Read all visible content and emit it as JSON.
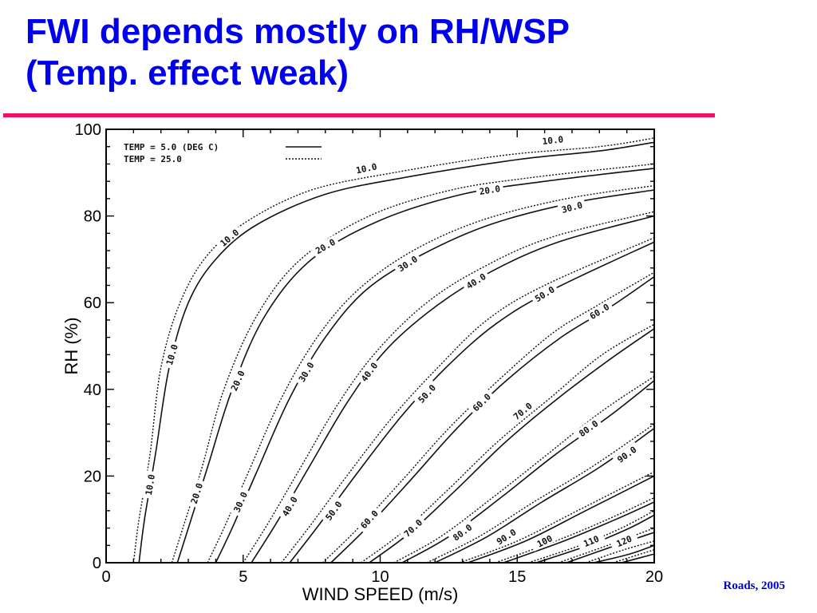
{
  "slide": {
    "title_line1": "FWI depends mostly on RH/WSP",
    "title_line2": "(Temp. effect weak)",
    "credit": "Roads, 2005",
    "title_color": "#0000ee",
    "rule_color": "#ee1166"
  },
  "chart_data": {
    "type": "line",
    "xlabel": "WIND SPEED   (m/s)",
    "ylabel": "RH (%)",
    "xlim": [
      0,
      20
    ],
    "ylim": [
      0,
      100
    ],
    "xticks": [
      "0",
      "5",
      "10",
      "15",
      "20"
    ],
    "yticks": [
      "0",
      "20",
      "40",
      "60",
      "80",
      "100"
    ],
    "legend": {
      "placement": "top-left",
      "entries": [
        {
          "label": "TEMP =    5.0 (DEG C)",
          "style": "solid"
        },
        {
          "label": "TEMP =   25.0",
          "style": "dotted"
        }
      ]
    },
    "series": [
      {
        "name": "TEMP =    5.0 (DEG C)",
        "style": "solid",
        "contours": [
          {
            "level": "10.0",
            "x": [
              1.2,
              1.4,
              1.8,
              2.3,
              3.0,
              4.0,
              5.5,
              8.0,
              11.0,
              15.0,
              18.0,
              20.0
            ],
            "y": [
              0,
              10,
              25,
              45,
              60,
              70,
              78,
              85,
              89,
              93,
              95,
              97
            ],
            "label_at": [
              [
                1.6,
                18
              ],
              [
                2.4,
                48
              ],
              [
                4.5,
                75
              ],
              [
                9.5,
                91
              ],
              [
                16.3,
                97.5
              ]
            ]
          },
          {
            "level": "20.0",
            "x": [
              2.6,
              3.0,
              3.7,
              4.6,
              5.8,
              7.5,
              10.0,
              13.0,
              16.0,
              20.0
            ],
            "y": [
              0,
              8,
              22,
              40,
              57,
              70,
              79,
              85,
              88,
              91
            ],
            "label_at": [
              [
                3.3,
                16
              ],
              [
                4.8,
                42
              ],
              [
                8.0,
                73
              ],
              [
                14.0,
                86
              ]
            ]
          },
          {
            "level": "30.0",
            "x": [
              4.0,
              4.6,
              5.5,
              6.7,
              8.0,
              9.5,
              11.5,
              14.0,
              17.0,
              20.0
            ],
            "y": [
              0,
              8,
              21,
              38,
              52,
              63,
              71,
              78,
              83,
              86
            ],
            "label_at": [
              [
                4.9,
                14
              ],
              [
                7.3,
                44
              ],
              [
                11.0,
                69
              ],
              [
                17.0,
                82
              ]
            ]
          },
          {
            "level": "40.0",
            "x": [
              5.3,
              6.2,
              7.4,
              8.8,
              10.2,
              12.0,
              14.0,
              16.5,
              20.0
            ],
            "y": [
              0,
              9,
              22,
              37,
              49,
              59,
              67,
              74,
              80
            ],
            "label_at": [
              [
                6.7,
                13
              ],
              [
                9.6,
                44
              ],
              [
                13.5,
                65
              ]
            ]
          },
          {
            "level": "50.0",
            "x": [
              6.7,
              7.8,
              9.2,
              10.8,
              12.4,
              14.2,
              16.3,
              20.0
            ],
            "y": [
              0,
              9,
              21,
              34,
              45,
              55,
              63,
              74
            ],
            "label_at": [
              [
                8.3,
                12
              ],
              [
                11.7,
                39
              ],
              [
                16.0,
                62
              ]
            ]
          },
          {
            "level": "60.0",
            "x": [
              8.2,
              9.5,
              11.1,
              12.8,
              14.6,
              16.6,
              18.4,
              20.0
            ],
            "y": [
              0,
              8,
              19,
              31,
              42,
              52,
              59,
              66
            ],
            "label_at": [
              [
                9.6,
                10
              ],
              [
                13.7,
                37
              ],
              [
                18.0,
                58
              ]
            ]
          },
          {
            "level": "70.0",
            "x": [
              9.6,
              11.1,
              12.8,
              14.6,
              16.5,
              18.4,
              20.0
            ],
            "y": [
              0,
              7,
              17,
              28,
              38,
              47,
              54
            ],
            "label_at": [
              [
                11.2,
                8
              ],
              [
                15.2,
                35
              ]
            ]
          },
          {
            "level": "80.0",
            "x": [
              10.8,
              12.5,
              14.4,
              16.4,
              18.4,
              20.0
            ],
            "y": [
              0,
              6,
              15,
              25,
              34,
              42
            ],
            "label_at": [
              [
                13.0,
                7
              ],
              [
                17.6,
                31
              ]
            ]
          },
          {
            "level": "90.0",
            "x": [
              12.0,
              13.9,
              15.9,
              18.0,
              20.0
            ],
            "y": [
              0,
              6,
              14,
              22,
              31
            ],
            "label_at": [
              [
                14.6,
                6
              ],
              [
                19.0,
                25
              ]
            ]
          },
          {
            "level": "100",
            "x": [
              13.2,
              15.3,
              17.5,
              20.0
            ],
            "y": [
              0,
              5,
              12,
              20
            ],
            "label_at": [
              [
                16.0,
                5
              ]
            ]
          },
          {
            "level": "110",
            "x": [
              14.5,
              16.7,
              18.6,
              20.0
            ],
            "y": [
              0,
              5,
              10,
              14
            ],
            "label_at": [
              [
                17.7,
                5
              ]
            ]
          },
          {
            "level": "120",
            "x": [
              15.7,
              17.6,
              19.1,
              20.0
            ],
            "y": [
              0,
              4,
              8,
              11
            ],
            "label_at": [
              [
                18.9,
                5
              ]
            ]
          },
          {
            "level": "",
            "x": [
              16.8,
              18.6,
              20.0
            ],
            "y": [
              0,
              4,
              7
            ]
          },
          {
            "level": "",
            "x": [
              17.8,
              19.1,
              20.0
            ],
            "y": [
              0,
              2,
              4
            ]
          },
          {
            "level": "",
            "x": [
              18.8,
              20.0
            ],
            "y": [
              0,
              2
            ]
          }
        ]
      },
      {
        "name": "TEMP =   25.0",
        "style": "dotted",
        "contours": [
          {
            "level": "10.0",
            "x": [
              1.0,
              1.2,
              1.6,
              2.0,
              2.7,
              3.7,
              5.2,
              7.5,
              10.5,
              14.5,
              18.0,
              20.0
            ],
            "y": [
              0,
              10,
              25,
              45,
              60,
              71,
              79,
              86,
              90,
              94,
              96,
              98
            ]
          },
          {
            "level": "20.0",
            "x": [
              2.4,
              2.8,
              3.5,
              4.3,
              5.5,
              7.1,
              9.6,
              12.6,
              15.7,
              20.0
            ],
            "y": [
              0,
              8,
              22,
              40,
              57,
              70,
              80,
              86,
              89,
              92
            ]
          },
          {
            "level": "30.0",
            "x": [
              3.7,
              4.3,
              5.2,
              6.4,
              7.7,
              9.2,
              11.2,
              13.7,
              16.8,
              20.0
            ],
            "y": [
              0,
              8,
              21,
              38,
              52,
              63,
              72,
              79,
              84,
              87
            ]
          },
          {
            "level": "40.0",
            "x": [
              5.0,
              5.9,
              7.1,
              8.5,
              9.9,
              11.7,
              13.7,
              16.2,
              20.0
            ],
            "y": [
              0,
              9,
              22,
              37,
              49,
              60,
              68,
              75,
              81
            ]
          },
          {
            "level": "50.0",
            "x": [
              6.4,
              7.5,
              8.9,
              10.5,
              12.1,
              13.9,
              16.0,
              20.0
            ],
            "y": [
              0,
              9,
              21,
              34,
              45,
              56,
              64,
              75
            ]
          },
          {
            "level": "60.0",
            "x": [
              7.9,
              9.2,
              10.8,
              12.5,
              14.3,
              16.3,
              18.1,
              20.0
            ],
            "y": [
              0,
              8,
              19,
              31,
              42,
              53,
              60,
              67
            ]
          },
          {
            "level": "70.0",
            "x": [
              9.3,
              10.8,
              12.5,
              14.3,
              16.2,
              18.1,
              20.0
            ],
            "y": [
              0,
              7,
              17,
              28,
              38,
              48,
              55
            ]
          },
          {
            "level": "80.0",
            "x": [
              10.5,
              12.2,
              14.1,
              16.1,
              18.1,
              20.0
            ],
            "y": [
              0,
              6,
              15,
              25,
              35,
              43
            ]
          },
          {
            "level": "90.0",
            "x": [
              11.7,
              13.6,
              15.6,
              17.7,
              20.0
            ],
            "y": [
              0,
              6,
              14,
              22,
              32
            ]
          },
          {
            "level": "100",
            "x": [
              12.9,
              15.0,
              17.2,
              20.0
            ],
            "y": [
              0,
              5,
              12,
              21
            ]
          },
          {
            "level": "110",
            "x": [
              14.2,
              16.4,
              18.3,
              20.0
            ],
            "y": [
              0,
              5,
              10,
              15
            ]
          },
          {
            "level": "120",
            "x": [
              15.4,
              17.3,
              18.8,
              20.0
            ],
            "y": [
              0,
              4,
              8,
              12
            ]
          },
          {
            "level": "",
            "x": [
              16.5,
              18.3,
              20.0
            ],
            "y": [
              0,
              4,
              8
            ]
          },
          {
            "level": "",
            "x": [
              17.5,
              18.9,
              20.0
            ],
            "y": [
              0,
              3,
              5
            ]
          },
          {
            "level": "",
            "x": [
              18.5,
              20.0
            ],
            "y": [
              0,
              3
            ]
          }
        ]
      }
    ]
  }
}
